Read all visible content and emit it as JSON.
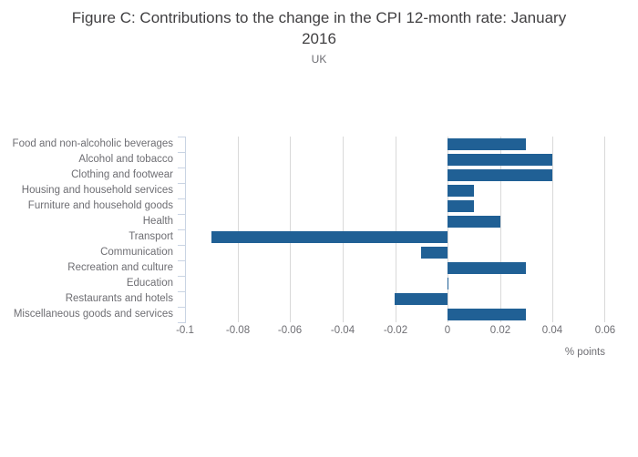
{
  "title": {
    "line1": "Figure C: Contributions to the change in the CPI 12-month rate: January",
    "line2": "2016",
    "full": "Figure C: Contributions to the change in the CPI 12-month rate: January 2016"
  },
  "subtitle": "UK",
  "colors": {
    "bar": "#206095",
    "gridline": "#d9d9d9",
    "axis": "#c9d4e3",
    "title_text": "#414042",
    "label_text": "#6e6e73"
  },
  "chart_data": {
    "type": "bar",
    "orientation": "horizontal",
    "title": "Figure C: Contributions to the change in the CPI 12-month rate: January 2016",
    "subtitle": "UK",
    "xlabel": "% points",
    "ylabel": "",
    "xlim": [
      -0.1,
      0.06
    ],
    "grid": true,
    "legend": false,
    "categories": [
      "Food and non-alcoholic beverages",
      "Alcohol and tobacco",
      "Clothing and footwear",
      "Housing and household services",
      "Furniture and household goods",
      "Health",
      "Transport",
      "Communication",
      "Recreation and culture",
      "Education",
      "Restaurants and hotels",
      "Miscellaneous goods and services"
    ],
    "values": [
      0.03,
      0.04,
      0.04,
      0.01,
      0.01,
      0.02,
      -0.09,
      -0.01,
      0.03,
      0,
      -0.02,
      0.03
    ],
    "xticks": [
      -0.1,
      -0.08,
      -0.06,
      -0.04,
      -0.02,
      0,
      0.02,
      0.04,
      0.06
    ],
    "xtick_labels": [
      "-0.1",
      "-0.08",
      "-0.06",
      "-0.04",
      "-0.02",
      "0",
      "0.02",
      "0.04",
      "0.06"
    ]
  }
}
